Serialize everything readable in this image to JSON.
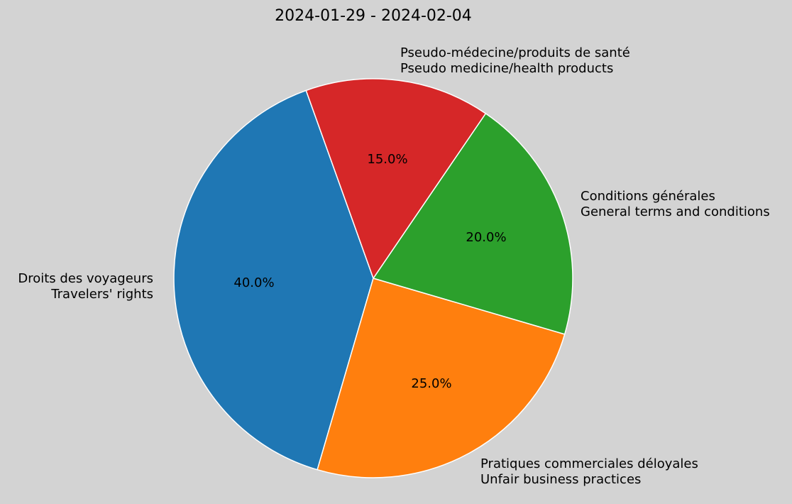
{
  "chart_data": {
    "type": "pie",
    "title": "2024-01-29 - 2024-02-04",
    "start_angle_deg": 109.7,
    "counterclock": true,
    "slices": [
      {
        "label_fr": "Droits des voyageurs",
        "label_en": "Travelers' rights",
        "value": 40.0,
        "pct_label": "40.0%",
        "color": "#1f77b4"
      },
      {
        "label_fr": "Pratiques commerciales déloyales",
        "label_en": "Unfair business practices",
        "value": 25.0,
        "pct_label": "25.0%",
        "color": "#ff7f0e"
      },
      {
        "label_fr": "Conditions générales",
        "label_en": "General terms and conditions",
        "value": 20.0,
        "pct_label": "20.0%",
        "color": "#2ca02c"
      },
      {
        "label_fr": "Pseudo-médecine/produits de santé",
        "label_en": "Pseudo medicine/health products",
        "value": 15.0,
        "pct_label": "15.0%",
        "color": "#d62728"
      }
    ],
    "background": "#d3d3d3",
    "edge_color": "#ffffff"
  }
}
